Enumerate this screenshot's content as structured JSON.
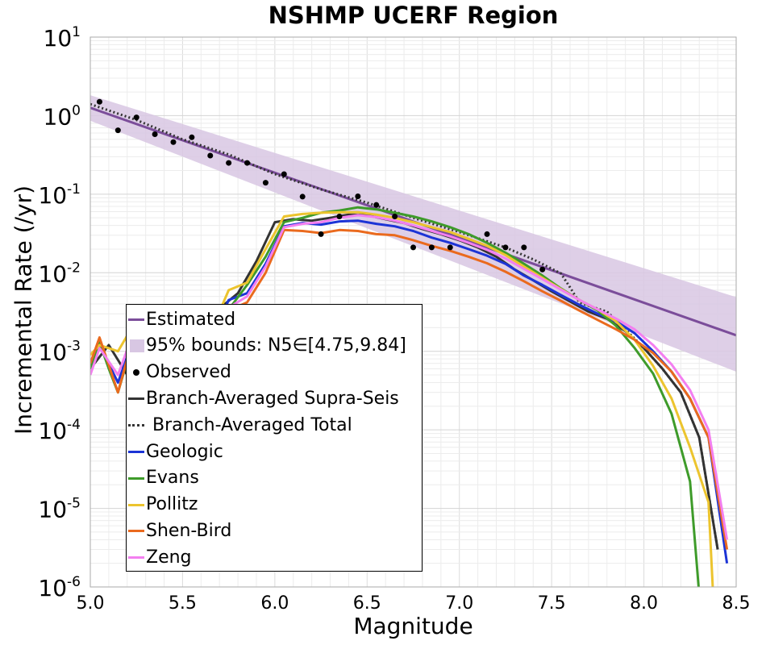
{
  "chart_data": {
    "type": "line",
    "title": "NSHMP UCERF Region",
    "xlabel": "Magnitude",
    "ylabel": "Incremental Rate (/yr)",
    "xlim": [
      5.0,
      8.5
    ],
    "ylim_log10": [
      -6,
      1
    ],
    "yscale": "log",
    "grid": true,
    "legend_placement": "lower-left",
    "x_ticks": [
      "5.0",
      "5.5",
      "6.0",
      "6.5",
      "7.0",
      "7.5",
      "8.0",
      "8.5"
    ],
    "y_ticks": [
      {
        "base": "10",
        "exp": "1"
      },
      {
        "base": "10",
        "exp": "0"
      },
      {
        "base": "10",
        "exp": "-1"
      },
      {
        "base": "10",
        "exp": "-2"
      },
      {
        "base": "10",
        "exp": "-3"
      },
      {
        "base": "10",
        "exp": "-4"
      },
      {
        "base": "10",
        "exp": "-5"
      },
      {
        "base": "10",
        "exp": "-6"
      }
    ],
    "bounds": {
      "name": "95% bounds: N5∈[4.75,9.84]",
      "color": "#d8c7e3",
      "x": [
        5.0,
        8.5
      ],
      "upper": [
        1.82,
        0.0049
      ],
      "lower": [
        0.86,
        0.00055
      ]
    },
    "estimated": {
      "name": "Estimated",
      "color": "#7b4d9a",
      "x": [
        5.0,
        8.5
      ],
      "y": [
        1.26,
        0.0016
      ]
    },
    "observed": {
      "name": "Observed",
      "color": "#000000",
      "x": [
        5.05,
        5.15,
        5.25,
        5.35,
        5.45,
        5.55,
        5.65,
        5.75,
        5.85,
        5.95,
        6.05,
        6.15,
        6.25,
        6.35,
        6.45,
        6.55,
        6.65,
        6.75,
        6.85,
        6.95,
        7.15,
        7.25,
        7.35,
        7.45
      ],
      "y": [
        1.5,
        0.65,
        0.95,
        0.58,
        0.46,
        0.53,
        0.31,
        0.25,
        0.25,
        0.14,
        0.18,
        0.093,
        0.031,
        0.052,
        0.094,
        0.073,
        0.052,
        0.021,
        0.021,
        0.021,
        0.031,
        0.021,
        0.021,
        0.011
      ]
    },
    "series": [
      {
        "name": "Branch-Averaged Supra-Seis",
        "color": "#333333",
        "dash": "solid",
        "x": [
          5.0,
          5.1,
          5.2,
          5.3,
          5.4,
          5.5,
          5.6,
          5.7,
          5.8,
          5.9,
          6.0,
          6.1,
          6.2,
          6.3,
          6.4,
          6.5,
          6.6,
          6.7,
          6.8,
          6.9,
          7.0,
          7.1,
          7.2,
          7.3,
          7.4,
          7.5,
          7.6,
          7.7,
          7.8,
          7.9,
          8.0,
          8.1,
          8.2,
          8.3,
          8.4
        ],
        "y": [
          0.0006,
          0.0012,
          0.0005,
          0.002,
          0.0017,
          0.0018,
          0.0015,
          0.0035,
          0.0055,
          0.014,
          0.044,
          0.048,
          0.046,
          0.05,
          0.055,
          0.054,
          0.048,
          0.043,
          0.036,
          0.031,
          0.026,
          0.021,
          0.016,
          0.011,
          0.008,
          0.0058,
          0.0043,
          0.0032,
          0.0026,
          0.0018,
          0.0011,
          0.0006,
          0.0003,
          8e-05,
          3e-06
        ]
      },
      {
        "name": "Branch-Averaged Total",
        "color": "#333333",
        "dash": "dotted",
        "x": [
          5.0,
          5.25,
          5.5,
          5.75,
          6.0,
          6.25,
          6.5,
          6.75,
          7.0,
          7.25,
          7.4,
          7.55,
          7.6,
          7.65,
          7.7,
          7.8,
          7.9,
          8.0,
          8.1,
          8.2,
          8.3,
          8.4
        ],
        "y": [
          1.4,
          0.88,
          0.5,
          0.32,
          0.18,
          0.115,
          0.078,
          0.05,
          0.033,
          0.021,
          0.0148,
          0.0098,
          0.0065,
          0.0042,
          0.0038,
          0.0032,
          0.0019,
          0.0011,
          0.0006,
          0.0003,
          8e-05,
          3e-06
        ]
      },
      {
        "name": "Geologic",
        "color": "#1c34d6",
        "dash": "solid",
        "x": [
          5.0,
          5.05,
          5.15,
          5.25,
          5.35,
          5.45,
          5.55,
          5.65,
          5.75,
          5.85,
          5.95,
          6.05,
          6.15,
          6.25,
          6.35,
          6.45,
          6.55,
          6.65,
          6.75,
          6.85,
          6.95,
          7.05,
          7.15,
          7.25,
          7.35,
          7.45,
          7.55,
          7.65,
          7.75,
          7.85,
          7.95,
          8.05,
          8.15,
          8.25,
          8.35,
          8.45
        ],
        "y": [
          0.0006,
          0.0012,
          0.0004,
          0.0018,
          0.0013,
          0.0015,
          0.0012,
          0.0013,
          0.0045,
          0.0055,
          0.013,
          0.039,
          0.043,
          0.041,
          0.045,
          0.046,
          0.042,
          0.039,
          0.034,
          0.028,
          0.024,
          0.02,
          0.0165,
          0.013,
          0.0092,
          0.007,
          0.0052,
          0.0039,
          0.003,
          0.0024,
          0.0017,
          0.001,
          0.00055,
          0.00025,
          8e-05,
          2e-06
        ]
      },
      {
        "name": "Evans",
        "color": "#3e9b2a",
        "dash": "solid",
        "x": [
          5.0,
          5.05,
          5.1,
          5.15,
          5.25,
          5.35,
          5.45,
          5.55,
          5.65,
          5.75,
          5.85,
          5.95,
          6.05,
          6.15,
          6.25,
          6.35,
          6.45,
          6.55,
          6.65,
          6.75,
          6.85,
          6.95,
          7.05,
          7.15,
          7.25,
          7.35,
          7.45,
          7.55,
          7.65,
          7.75,
          7.85,
          7.95,
          8.05,
          8.15,
          8.25,
          8.3
        ],
        "y": [
          0.0006,
          0.0013,
          0.0006,
          0.0003,
          0.0019,
          0.0015,
          0.0017,
          0.0013,
          0.0016,
          0.0034,
          0.007,
          0.016,
          0.044,
          0.05,
          0.058,
          0.062,
          0.068,
          0.064,
          0.058,
          0.052,
          0.045,
          0.038,
          0.031,
          0.024,
          0.018,
          0.013,
          0.0092,
          0.0063,
          0.0045,
          0.0033,
          0.0021,
          0.0011,
          0.00052,
          0.00016,
          2.2e-05,
          8e-07
        ]
      },
      {
        "name": "Pollitz",
        "color": "#ecc42e",
        "dash": "solid",
        "x": [
          5.0,
          5.05,
          5.15,
          5.25,
          5.35,
          5.45,
          5.55,
          5.65,
          5.75,
          5.85,
          5.95,
          6.05,
          6.15,
          6.25,
          6.35,
          6.45,
          6.55,
          6.65,
          6.75,
          6.85,
          6.95,
          7.05,
          7.15,
          7.25,
          7.35,
          7.45,
          7.55,
          7.65,
          7.75,
          7.85,
          7.95,
          8.05,
          8.15,
          8.25,
          8.35,
          8.375
        ],
        "y": [
          0.0009,
          0.0012,
          0.001,
          0.0025,
          0.002,
          0.0022,
          0.0018,
          0.0017,
          0.006,
          0.0075,
          0.02,
          0.052,
          0.056,
          0.058,
          0.059,
          0.059,
          0.055,
          0.05,
          0.044,
          0.038,
          0.033,
          0.027,
          0.022,
          0.0168,
          0.012,
          0.0086,
          0.0062,
          0.0045,
          0.0034,
          0.0024,
          0.0014,
          0.00065,
          0.00025,
          6e-05,
          1.2e-05,
          8e-07
        ]
      },
      {
        "name": "Shen-Bird",
        "color": "#ea6a1e",
        "dash": "solid",
        "x": [
          5.0,
          5.05,
          5.15,
          5.25,
          5.35,
          5.45,
          5.55,
          5.65,
          5.75,
          5.85,
          5.95,
          6.05,
          6.15,
          6.25,
          6.35,
          6.45,
          6.55,
          6.65,
          6.75,
          6.85,
          6.95,
          7.05,
          7.15,
          7.25,
          7.35,
          7.45,
          7.55,
          7.65,
          7.75,
          7.85,
          7.95,
          8.05,
          8.15,
          8.25,
          8.35,
          8.45
        ],
        "y": [
          0.0007,
          0.0015,
          0.0003,
          0.0021,
          0.0015,
          0.0017,
          0.0013,
          0.0012,
          0.0033,
          0.0042,
          0.01,
          0.035,
          0.034,
          0.032,
          0.035,
          0.034,
          0.031,
          0.03,
          0.026,
          0.022,
          0.019,
          0.016,
          0.0132,
          0.0103,
          0.0078,
          0.0058,
          0.0044,
          0.0033,
          0.0025,
          0.0019,
          0.0014,
          0.00095,
          0.00055,
          0.00025,
          8e-05,
          3e-06
        ]
      },
      {
        "name": "Zeng",
        "color": "#f37ff0",
        "dash": "solid",
        "x": [
          5.0,
          5.05,
          5.15,
          5.25,
          5.35,
          5.45,
          5.55,
          5.65,
          5.75,
          5.85,
          5.95,
          6.05,
          6.15,
          6.25,
          6.35,
          6.45,
          6.55,
          6.65,
          6.75,
          6.85,
          6.95,
          7.05,
          7.15,
          7.25,
          7.35,
          7.45,
          7.55,
          7.65,
          7.75,
          7.85,
          7.95,
          8.05,
          8.15,
          8.25,
          8.35,
          8.45
        ],
        "y": [
          0.0005,
          0.0011,
          0.0005,
          0.0022,
          0.0014,
          0.0016,
          0.0014,
          0.0014,
          0.0036,
          0.005,
          0.012,
          0.038,
          0.042,
          0.044,
          0.05,
          0.054,
          0.051,
          0.046,
          0.04,
          0.034,
          0.029,
          0.024,
          0.0196,
          0.0152,
          0.0112,
          0.0083,
          0.0061,
          0.0045,
          0.0034,
          0.0026,
          0.0019,
          0.0012,
          0.00068,
          0.00032,
          0.0001,
          4e-06
        ]
      }
    ],
    "legend": [
      {
        "label": "Estimated",
        "kind": "line",
        "color": "#7b4d9a"
      },
      {
        "label": "95% bounds: N5∈[4.75,9.84]",
        "kind": "patch",
        "color": "#d8c7e3"
      },
      {
        "label": "Observed",
        "kind": "dot",
        "color": "#000000"
      },
      {
        "label": "Branch-Averaged Supra-Seis",
        "kind": "line",
        "color": "#333333"
      },
      {
        "label": "Branch-Averaged Total",
        "kind": "dotted",
        "color": "#333333"
      },
      {
        "label": "Geologic",
        "kind": "line",
        "color": "#1c34d6"
      },
      {
        "label": "Evans",
        "kind": "line",
        "color": "#3e9b2a"
      },
      {
        "label": "Pollitz",
        "kind": "line",
        "color": "#ecc42e"
      },
      {
        "label": "Shen-Bird",
        "kind": "line",
        "color": "#ea6a1e"
      },
      {
        "label": "Zeng",
        "kind": "line",
        "color": "#f37ff0"
      }
    ]
  }
}
